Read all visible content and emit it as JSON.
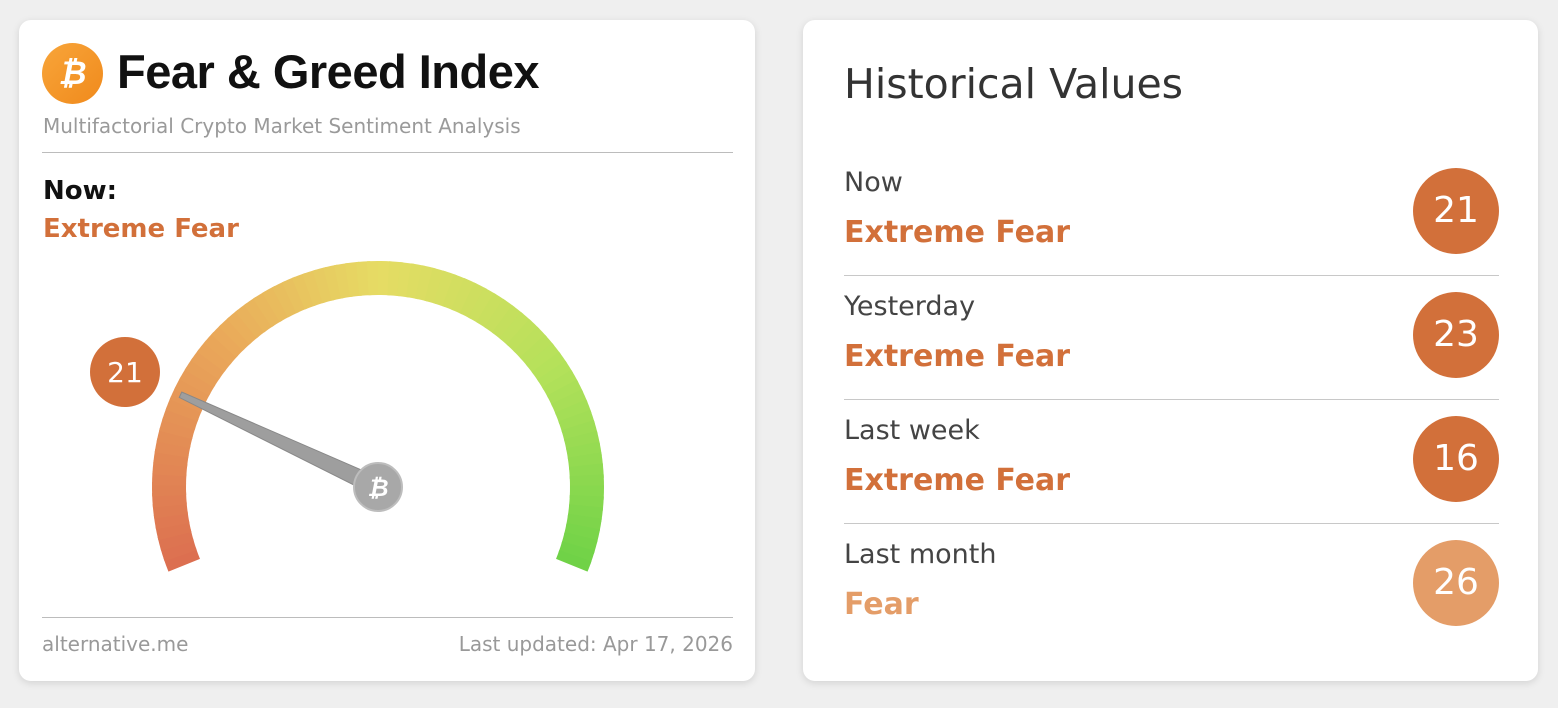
{
  "left_card": {
    "logo_icon": "bitcoin-icon",
    "title": "Fear & Greed Index",
    "subtitle": "Multifactorial Crypto Market Sentiment Analysis",
    "now_label": "Now:",
    "now_status": "Extreme Fear",
    "gauge": {
      "value": 21,
      "min": 0,
      "max": 100,
      "value_label": "21",
      "needle_hub_icon": "bitcoin-icon",
      "badge_color": "#d2703a"
    },
    "footer_left": "alternative.me",
    "footer_right": "Last updated: Apr 17, 2026"
  },
  "right_card": {
    "title": "Historical Values",
    "rows": [
      {
        "label": "Now",
        "status": "Extreme Fear",
        "value": "21",
        "color": "#d2703a"
      },
      {
        "label": "Yesterday",
        "status": "Extreme Fear",
        "value": "23",
        "color": "#d2703a"
      },
      {
        "label": "Last week",
        "status": "Extreme Fear",
        "value": "16",
        "color": "#d2703a"
      },
      {
        "label": "Last month",
        "status": "Fear",
        "value": "26",
        "color": "#e49d68"
      }
    ]
  }
}
